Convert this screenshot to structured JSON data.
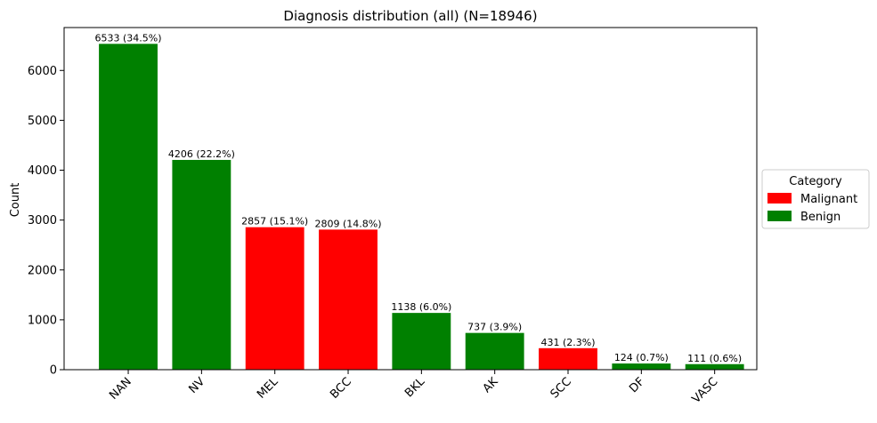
{
  "chart_data": {
    "type": "bar",
    "title": "Diagnosis distribution (all) (N=18946)",
    "xlabel": "",
    "ylabel": "Count",
    "ylim": [
      0,
      6860
    ],
    "yticks": [
      0,
      1000,
      2000,
      3000,
      4000,
      5000,
      6000
    ],
    "categories": [
      "NAN",
      "NV",
      "MEL",
      "BCC",
      "BKL",
      "AK",
      "SCC",
      "DF",
      "VASC"
    ],
    "values": [
      6533,
      4206,
      2857,
      2809,
      1138,
      737,
      431,
      124,
      111
    ],
    "bar_labels": [
      "6533 (34.5%)",
      "4206 (22.2%)",
      "2857 (15.1%)",
      "2809 (14.8%)",
      "1138 (6.0%)",
      "737 (3.9%)",
      "431 (2.3%)",
      "124 (0.7%)",
      "111 (0.6%)"
    ],
    "category_of_bar": [
      "Benign",
      "Benign",
      "Malignant",
      "Malignant",
      "Benign",
      "Benign",
      "Malignant",
      "Benign",
      "Benign"
    ],
    "legend": {
      "title": "Category",
      "placement": "right",
      "entries": [
        {
          "name": "Malignant",
          "color": "#ff0000"
        },
        {
          "name": "Benign",
          "color": "#008000"
        }
      ]
    },
    "grid": false
  }
}
